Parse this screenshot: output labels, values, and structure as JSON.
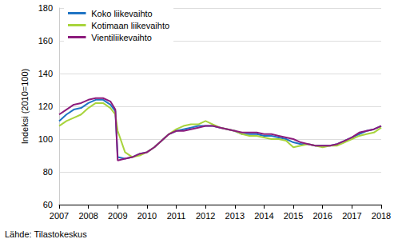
{
  "chart_data": {
    "type": "line",
    "y_label": "Indeksi (2010=100)",
    "annotations": [
      "Lähde: Tilastokeskus"
    ],
    "x": [
      2007,
      2007.25,
      2007.5,
      2007.75,
      2008,
      2008.25,
      2008.5,
      2008.75,
      2008.92,
      2009,
      2009.25,
      2009.5,
      2009.75,
      2010,
      2010.25,
      2010.5,
      2010.75,
      2011,
      2011.25,
      2011.5,
      2011.75,
      2012,
      2012.25,
      2012.5,
      2012.75,
      2013,
      2013.25,
      2013.5,
      2013.75,
      2014,
      2014.25,
      2014.5,
      2014.75,
      2015,
      2015.25,
      2015.5,
      2015.75,
      2016,
      2016.25,
      2016.5,
      2016.75,
      2017,
      2017.25,
      2017.5,
      2017.75,
      2018
    ],
    "series": [
      {
        "name": "Koko liikevaihto",
        "color": "#1f74c4",
        "values": [
          111,
          115,
          118,
          119,
          122,
          124,
          124,
          121,
          117,
          89,
          88,
          89,
          91,
          92,
          95,
          99,
          103,
          105,
          106,
          107,
          108,
          108,
          108,
          107,
          106,
          105,
          103,
          103,
          103,
          102,
          102,
          101,
          100,
          98,
          97,
          97,
          96,
          96,
          96,
          97,
          99,
          101,
          103,
          105,
          106,
          108
        ]
      },
      {
        "name": "Kotimaan liikevaihto",
        "color": "#a8d43c",
        "values": [
          108,
          111,
          113,
          115,
          119,
          122,
          122,
          119,
          115,
          105,
          92,
          89,
          90,
          92,
          95,
          99,
          103,
          106,
          108,
          109,
          109,
          111,
          109,
          107,
          106,
          105,
          103,
          102,
          102,
          101,
          100,
          100,
          99,
          95,
          96,
          97,
          96,
          95,
          96,
          96,
          98,
          100,
          102,
          103,
          104,
          107
        ]
      },
      {
        "name": "Vientiliikevaihto",
        "color": "#8c1b7c",
        "values": [
          115,
          118,
          121,
          122,
          124,
          125,
          125,
          123,
          118,
          87,
          88,
          89,
          91,
          92,
          95,
          99,
          103,
          105,
          105,
          106,
          107,
          108,
          108,
          107,
          106,
          105,
          104,
          104,
          104,
          103,
          103,
          102,
          101,
          100,
          98,
          97,
          96,
          96,
          96,
          97,
          99,
          101,
          104,
          105,
          106,
          108
        ]
      }
    ],
    "xlim": [
      2007,
      2018
    ],
    "xticks": [
      2007,
      2008,
      2009,
      2010,
      2011,
      2012,
      2013,
      2014,
      2015,
      2016,
      2017,
      2018
    ],
    "ylim": [
      60,
      180
    ],
    "yticks": [
      60,
      80,
      100,
      120,
      140,
      160,
      180
    ],
    "grid": true,
    "legend": "top-left",
    "line_style": "solid"
  }
}
